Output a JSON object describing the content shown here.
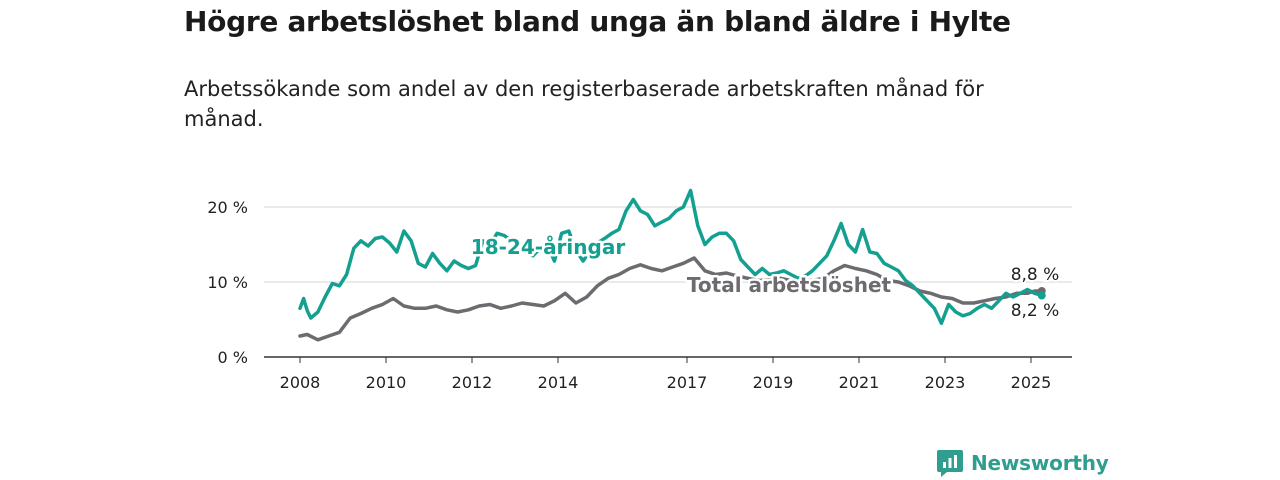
{
  "title": "Högre arbetslöshet bland unga än bland äldre i Hylte",
  "subtitle": "Arbetssökande som andel av den registerbaserade arbetskraften månad för månad.",
  "brand": {
    "name": "Newsworthy",
    "icon": "newsworthy-logo-icon"
  },
  "colors": {
    "youth": "#14a090",
    "total": "#6e6b70",
    "grid": "#d6d6d6",
    "axis": "#333333"
  },
  "chart_data": {
    "type": "line",
    "title": "Högre arbetslöshet bland unga än bland äldre i Hylte",
    "subtitle": "Arbetssökande som andel av den registerbaserade arbetskraften månad för månad.",
    "x_ticks": [
      "2008",
      "2010",
      "2012",
      "2014",
      "2017",
      "2019",
      "2021",
      "2023",
      "2025"
    ],
    "y_ticks": [
      "0 %",
      "10 %",
      "20 %"
    ],
    "ylim": [
      0,
      22
    ],
    "grid": "horizontal",
    "series": [
      {
        "name": "18-24-åringar",
        "color": "#14a090",
        "end_label": "8,2 %",
        "x": [
          "2008-01",
          "2008-02",
          "2008-03",
          "2008-04",
          "2008-06",
          "2008-08",
          "2008-10",
          "2008-12",
          "2009-02",
          "2009-04",
          "2009-06",
          "2009-08",
          "2009-10",
          "2009-12",
          "2010-02",
          "2010-04",
          "2010-06",
          "2010-08",
          "2010-10",
          "2010-12",
          "2011-02",
          "2011-04",
          "2011-06",
          "2011-08",
          "2011-10",
          "2011-12",
          "2012-02",
          "2012-04",
          "2012-06",
          "2012-08",
          "2012-10",
          "2012-12",
          "2013-02",
          "2013-04",
          "2013-06",
          "2013-08",
          "2013-10",
          "2013-12",
          "2014-02",
          "2014-04",
          "2014-06",
          "2014-08",
          "2014-10",
          "2014-12",
          "2015-02",
          "2015-04",
          "2015-06",
          "2015-08",
          "2015-10",
          "2015-12",
          "2016-02",
          "2016-04",
          "2016-06",
          "2016-08",
          "2016-10",
          "2016-12",
          "2017-02",
          "2017-04",
          "2017-06",
          "2017-08",
          "2017-10",
          "2017-12",
          "2018-02",
          "2018-04",
          "2018-06",
          "2018-08",
          "2018-10",
          "2018-12",
          "2019-02",
          "2019-04",
          "2019-06",
          "2019-08",
          "2019-10",
          "2019-12",
          "2020-02",
          "2020-04",
          "2020-06",
          "2020-08",
          "2020-10",
          "2020-12",
          "2021-02",
          "2021-04",
          "2021-06",
          "2021-08",
          "2021-10",
          "2021-12",
          "2022-02",
          "2022-04",
          "2022-06",
          "2022-08",
          "2022-10",
          "2022-12",
          "2023-02",
          "2023-04",
          "2023-06",
          "2023-08",
          "2023-10",
          "2023-12",
          "2024-02",
          "2024-04",
          "2024-06",
          "2024-08",
          "2024-10",
          "2024-12",
          "2025-02",
          "2025-04"
        ],
        "values": [
          6.5,
          7.8,
          6.2,
          5.2,
          6.0,
          8.0,
          9.8,
          9.5,
          11.0,
          14.5,
          15.5,
          14.8,
          15.8,
          16.0,
          15.2,
          14.0,
          16.8,
          15.5,
          12.5,
          12.0,
          13.8,
          12.5,
          11.5,
          12.8,
          12.2,
          11.8,
          12.2,
          15.5,
          15.0,
          16.5,
          16.2,
          15.5,
          14.8,
          14.0,
          13.5,
          14.5,
          15.0,
          12.8,
          16.5,
          16.8,
          14.2,
          12.8,
          14.2,
          15.2,
          15.8,
          16.5,
          17.0,
          19.5,
          21.0,
          19.5,
          19.0,
          17.5,
          18.0,
          18.5,
          19.5,
          20.0,
          22.2,
          17.5,
          15.0,
          16.0,
          16.5,
          16.5,
          15.5,
          13.0,
          12.0,
          11.0,
          11.8,
          11.0,
          11.2,
          11.5,
          11.0,
          10.5,
          10.8,
          11.5,
          12.5,
          13.5,
          15.5,
          17.8,
          15.0,
          14.0,
          17.0,
          14.0,
          13.8,
          12.5,
          12.0,
          11.5,
          10.2,
          9.5,
          8.5,
          7.5,
          6.5,
          4.5,
          7.0,
          6.0,
          5.5,
          5.8,
          6.5,
          7.0,
          6.5,
          7.5,
          8.5,
          8.0,
          8.5,
          9.0,
          8.5,
          8.2
        ]
      },
      {
        "name": "Total arbetslöshet",
        "color": "#6e6b70",
        "end_label": "8,8 %",
        "x": [
          "2008-01",
          "2008-03",
          "2008-06",
          "2008-09",
          "2008-12",
          "2009-03",
          "2009-06",
          "2009-09",
          "2009-12",
          "2010-03",
          "2010-06",
          "2010-09",
          "2010-12",
          "2011-03",
          "2011-06",
          "2011-09",
          "2011-12",
          "2012-03",
          "2012-06",
          "2012-09",
          "2012-12",
          "2013-03",
          "2013-06",
          "2013-09",
          "2013-12",
          "2014-03",
          "2014-06",
          "2014-09",
          "2014-12",
          "2015-03",
          "2015-06",
          "2015-09",
          "2015-12",
          "2016-03",
          "2016-06",
          "2016-09",
          "2016-12",
          "2017-03",
          "2017-06",
          "2017-09",
          "2017-12",
          "2018-03",
          "2018-06",
          "2018-09",
          "2018-12",
          "2019-03",
          "2019-06",
          "2019-09",
          "2019-12",
          "2020-03",
          "2020-06",
          "2020-09",
          "2020-12",
          "2021-03",
          "2021-06",
          "2021-09",
          "2021-12",
          "2022-03",
          "2022-06",
          "2022-09",
          "2022-12",
          "2023-03",
          "2023-06",
          "2023-09",
          "2023-12",
          "2024-03",
          "2024-06",
          "2024-09",
          "2024-12",
          "2025-02",
          "2025-04"
        ],
        "values": [
          2.8,
          3.0,
          2.3,
          2.8,
          3.3,
          5.2,
          5.8,
          6.5,
          7.0,
          7.8,
          6.8,
          6.5,
          6.5,
          6.8,
          6.3,
          6.0,
          6.3,
          6.8,
          7.0,
          6.5,
          6.8,
          7.2,
          7.0,
          6.8,
          7.5,
          8.5,
          7.2,
          8.0,
          9.5,
          10.5,
          11.0,
          11.8,
          12.3,
          11.8,
          11.5,
          12.0,
          12.5,
          13.2,
          11.5,
          11.0,
          11.2,
          10.8,
          10.5,
          10.2,
          10.3,
          10.5,
          10.2,
          10.3,
          10.2,
          10.5,
          11.5,
          12.2,
          11.8,
          11.5,
          11.0,
          10.2,
          10.0,
          9.5,
          8.8,
          8.5,
          8.0,
          7.8,
          7.2,
          7.2,
          7.5,
          7.8,
          8.0,
          8.5,
          8.5,
          8.8,
          8.8
        ]
      }
    ]
  }
}
